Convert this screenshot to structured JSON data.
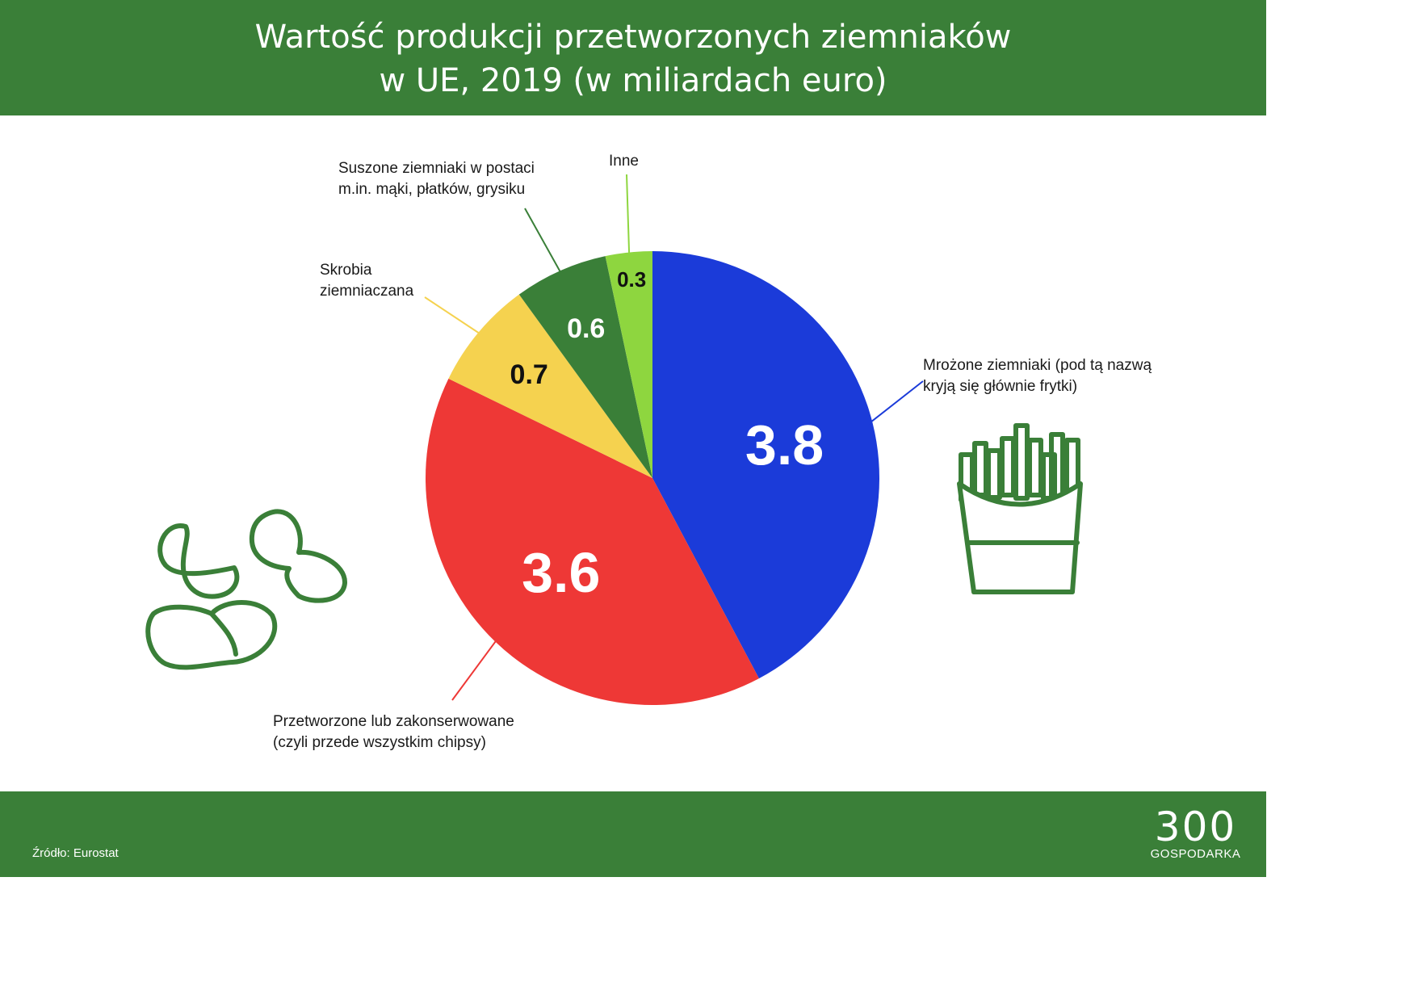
{
  "title": {
    "line1": "Wartość produkcji przetworzonych ziemniaków",
    "line2": "w UE, 2019 (w miliardach euro)"
  },
  "chart_data": {
    "type": "pie",
    "title": "Wartość produkcji przetworzonych ziemniaków w UE, 2019 (w miliardach euro)",
    "unit": "miliardy euro",
    "slices": [
      {
        "value": 3.8,
        "value_label": "3.8",
        "label_lines": [
          "Mrożone ziemniaki (pod tą nazwą",
          "kryją się głównie frytki)"
        ],
        "color": "#1b3bd9"
      },
      {
        "value": 3.6,
        "value_label": "3.6",
        "label_lines": [
          "Przetworzone lub zakonserwowane",
          "(czyli przede wszystkim chipsy)"
        ],
        "color": "#ee3836"
      },
      {
        "value": 0.7,
        "value_label": "0.7",
        "label_lines": [
          "Skrobia",
          "ziemniaczana"
        ],
        "color": "#f5d24f"
      },
      {
        "value": 0.6,
        "value_label": "0.6",
        "label_lines": [
          "Suszone ziemniaki w postaci",
          "m.in. mąki, płatków, grysiku"
        ],
        "color": "#3a7f38"
      },
      {
        "value": 0.3,
        "value_label": "0.3",
        "label_lines": [
          "Inne"
        ],
        "color": "#8ed63f"
      }
    ]
  },
  "icons": [
    "fries-icon",
    "chips-icon"
  ],
  "footer": {
    "source": "Źródło: Eurostat",
    "logo_number": "300",
    "logo_text": "GOSPODARKA"
  },
  "colors": {
    "header_bg": "#3a7f38",
    "icon_stroke": "#3a7f38"
  }
}
